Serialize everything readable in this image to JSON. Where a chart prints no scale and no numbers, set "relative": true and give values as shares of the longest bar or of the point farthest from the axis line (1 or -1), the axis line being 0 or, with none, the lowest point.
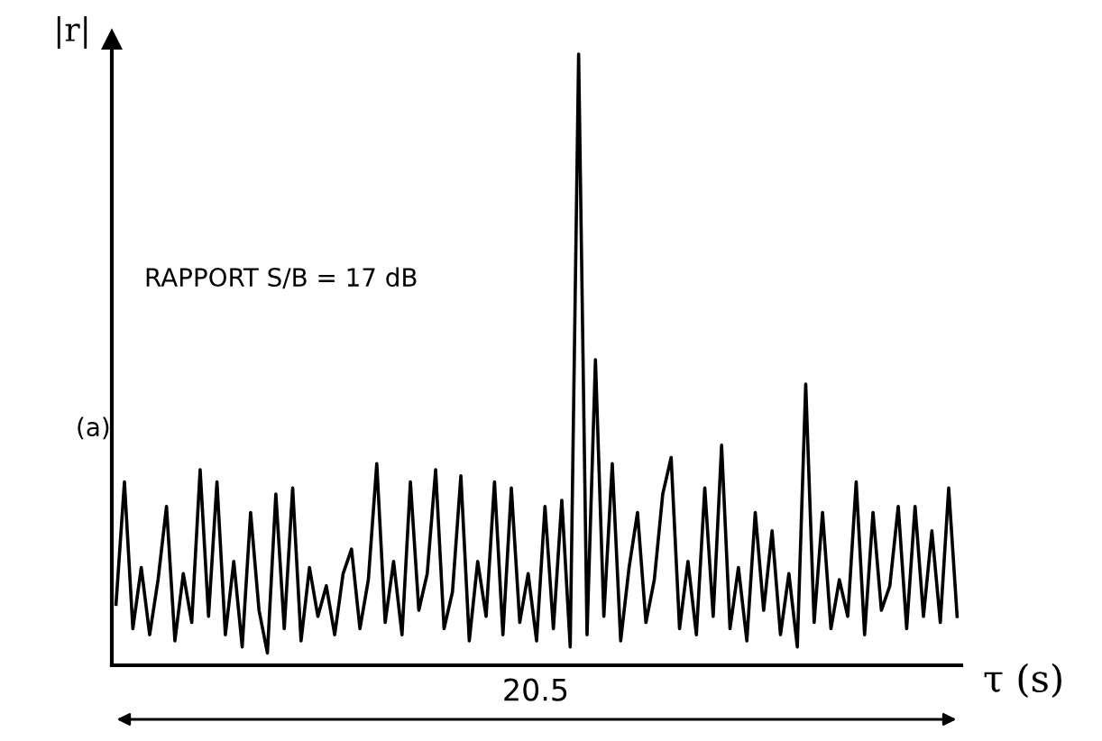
{
  "chart_data": {
    "type": "line",
    "relative": true,
    "ylabel": "|r|",
    "xlabel": "τ (s)",
    "annotations": [
      "RAPPORT S/B = 17 dB",
      "(a)",
      "20.5"
    ],
    "color": "#000000",
    "line_style": "solid",
    "marker": "none",
    "grid": false,
    "legend": false,
    "categories": [
      null,
      null,
      null,
      null,
      null,
      null,
      null,
      null,
      null,
      null,
      null,
      null,
      null,
      null,
      null,
      null,
      null,
      null,
      null,
      null,
      null,
      null,
      null,
      null,
      null,
      null,
      null,
      null,
      null,
      null,
      null,
      null,
      null,
      null,
      null,
      null,
      null,
      null,
      null,
      null,
      null,
      null,
      null,
      null,
      null,
      null,
      null,
      null,
      null,
      null,
      null,
      null,
      null,
      null,
      null,
      null,
      null,
      null,
      null,
      null,
      null,
      null,
      null,
      null,
      null,
      null,
      null,
      null,
      null,
      null,
      null,
      null,
      null,
      null,
      null,
      null,
      null,
      null,
      null,
      null,
      null,
      null,
      null,
      null,
      null,
      null,
      null,
      null,
      null,
      null,
      null,
      null,
      null,
      null,
      null,
      null,
      null,
      null,
      null,
      null,
      null
    ],
    "values": [
      0.1,
      0.3,
      0.06,
      0.16,
      0.05,
      0.14,
      0.26,
      0.04,
      0.15,
      0.07,
      0.32,
      0.08,
      0.3,
      0.05,
      0.17,
      0.03,
      0.25,
      0.09,
      0.02,
      0.28,
      0.06,
      0.29,
      0.04,
      0.16,
      0.08,
      0.13,
      0.05,
      0.15,
      0.19,
      0.06,
      0.14,
      0.33,
      0.07,
      0.17,
      0.05,
      0.3,
      0.09,
      0.15,
      0.32,
      0.06,
      0.12,
      0.31,
      0.04,
      0.17,
      0.08,
      0.3,
      0.05,
      0.29,
      0.07,
      0.15,
      0.04,
      0.26,
      0.06,
      0.27,
      0.03,
      1.0,
      0.05,
      0.5,
      0.08,
      0.33,
      0.04,
      0.16,
      0.25,
      0.07,
      0.14,
      0.28,
      0.34,
      0.06,
      0.17,
      0.05,
      0.29,
      0.08,
      0.36,
      0.06,
      0.16,
      0.04,
      0.25,
      0.09,
      0.22,
      0.05,
      0.15,
      0.03,
      0.46,
      0.07,
      0.25,
      0.06,
      0.14,
      0.08,
      0.3,
      0.05,
      0.25,
      0.09,
      0.13,
      0.26,
      0.06,
      0.26,
      0.08,
      0.22,
      0.07,
      0.29,
      0.08
    ]
  }
}
